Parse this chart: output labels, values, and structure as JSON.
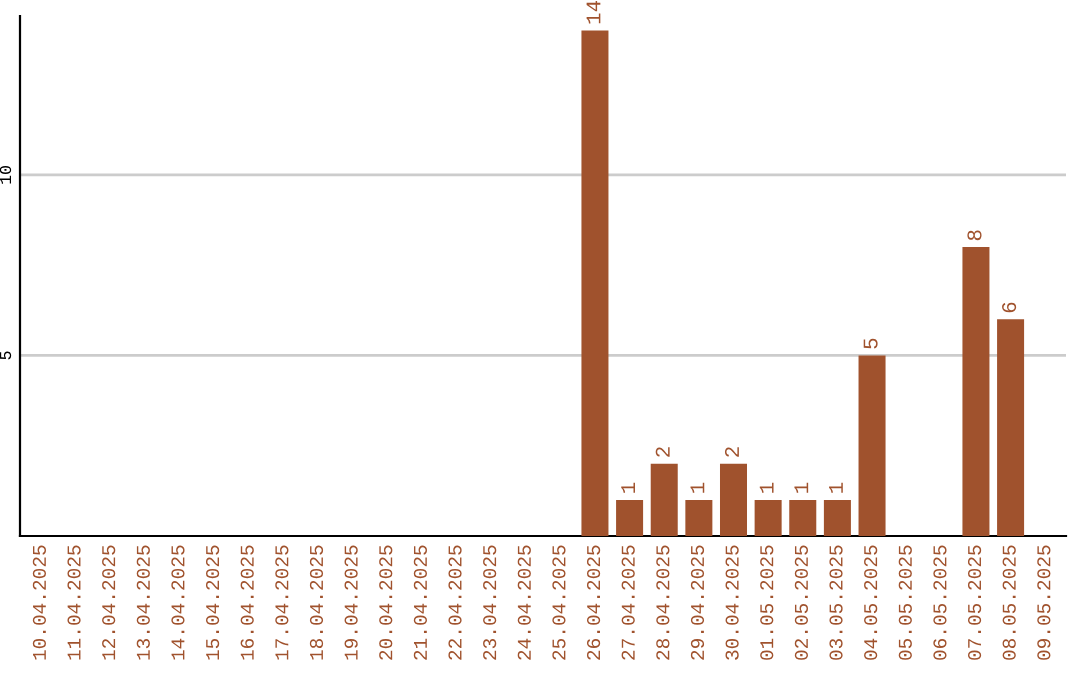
{
  "chart_data": {
    "type": "bar",
    "categories": [
      "10.04.2025",
      "11.04.2025",
      "12.04.2025",
      "13.04.2025",
      "14.04.2025",
      "15.04.2025",
      "16.04.2025",
      "17.04.2025",
      "18.04.2025",
      "19.04.2025",
      "20.04.2025",
      "21.04.2025",
      "22.04.2025",
      "23.04.2025",
      "24.04.2025",
      "25.04.2025",
      "26.04.2025",
      "27.04.2025",
      "28.04.2025",
      "29.04.2025",
      "30.04.2025",
      "01.05.2025",
      "02.05.2025",
      "03.05.2025",
      "04.05.2025",
      "05.05.2025",
      "06.05.2025",
      "07.05.2025",
      "08.05.2025",
      "09.05.2025"
    ],
    "values": [
      0,
      0,
      0,
      0,
      0,
      0,
      0,
      0,
      0,
      0,
      0,
      0,
      0,
      0,
      0,
      0,
      14,
      1,
      2,
      1,
      2,
      1,
      1,
      1,
      5,
      0,
      0,
      8,
      6,
      0
    ],
    "value_labels": [
      null,
      null,
      null,
      null,
      null,
      null,
      null,
      null,
      null,
      null,
      null,
      null,
      null,
      null,
      null,
      null,
      "14",
      "1",
      "2",
      "1",
      "2",
      "1",
      "1",
      "1",
      "5",
      null,
      null,
      "8",
      "6",
      null
    ],
    "color": "#a0522d",
    "ylim": [
      0,
      14.4
    ],
    "yticks": [
      5,
      10
    ],
    "grid": "y"
  }
}
